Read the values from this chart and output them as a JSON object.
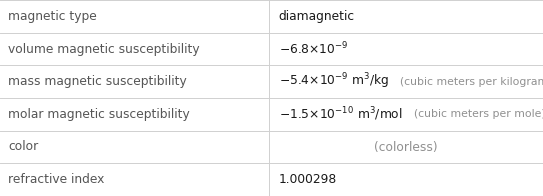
{
  "rows": [
    {
      "label": "magnetic type",
      "value_text": "diamagnetic",
      "value_math": null,
      "value_gray": null,
      "value_is_gray": false,
      "colorless": false
    },
    {
      "label": "volume magnetic susceptibility",
      "value_text": null,
      "value_math": "$-6.8{\\times}10^{-9}$",
      "value_gray": null,
      "value_is_gray": false,
      "colorless": false
    },
    {
      "label": "mass magnetic susceptibility",
      "value_text": null,
      "value_math": "$-5.4{\\times}10^{-9}\\,\\mathrm{m^3/kg}$",
      "value_gray": "(cubic meters per kilogram)",
      "value_is_gray": false,
      "colorless": false
    },
    {
      "label": "molar magnetic susceptibility",
      "value_text": null,
      "value_math": "$-1.5{\\times}10^{-10}\\,\\mathrm{m^3/mol}$",
      "value_gray": "(cubic meters per mole)",
      "value_is_gray": false,
      "colorless": false
    },
    {
      "label": "color",
      "value_text": null,
      "value_math": null,
      "value_gray": "(colorless)",
      "value_is_gray": true,
      "colorless": true
    },
    {
      "label": "refractive index",
      "value_text": "1.000298",
      "value_math": null,
      "value_gray": null,
      "value_is_gray": false,
      "colorless": false
    }
  ],
  "col_split": 0.495,
  "bg_color": "#ffffff",
  "label_color": "#555555",
  "value_color": "#1a1a1a",
  "gray_color": "#909090",
  "line_color": "#d0d0d0",
  "label_fontsize": 8.8,
  "value_fontsize": 8.8,
  "gray_fontsize": 7.8
}
